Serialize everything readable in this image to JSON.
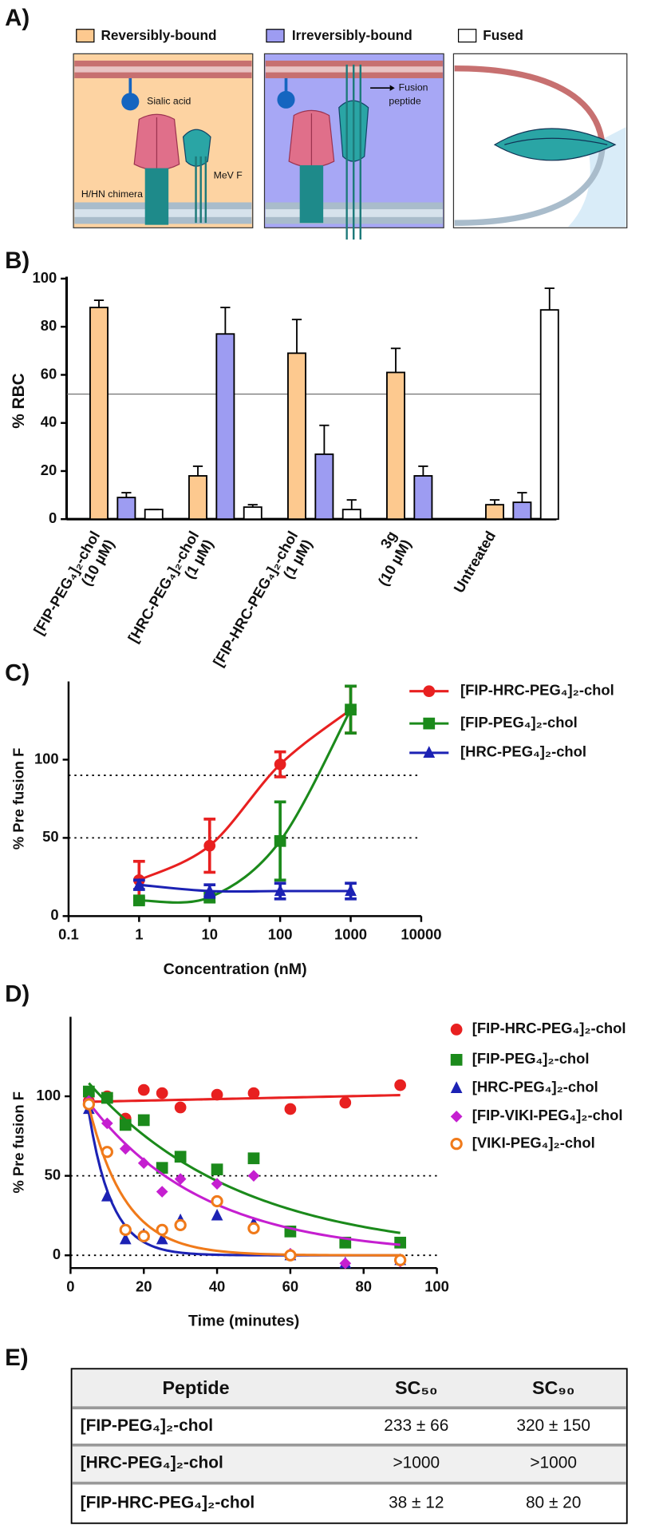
{
  "panel_a": {
    "label": "A)",
    "sialic_acid": "Sialic acid",
    "chimera": "H/HN chimera",
    "mev_f": "MeV F",
    "fusion_peptide": [
      "Fusion",
      "peptide"
    ]
  },
  "chart_data": [
    {
      "type": "bar",
      "panel_label": "B)",
      "ylabel": "% RBC",
      "categories": [
        "[FIP-PEG₄]₂-chol",
        "[HRC-PEG₄]₂-chol",
        "[FIP-HRC-PEG₄]₂-chol",
        "3g",
        "Untreated"
      ],
      "category_sublabels": [
        "(10 µM)",
        "(1 µM)",
        "(1 µM)",
        "(10 µM)",
        null
      ],
      "series": [
        {
          "name": "Reversibly-bound",
          "color": "#fdc98f",
          "values": [
            88,
            18,
            69,
            61,
            6
          ],
          "errors": [
            3,
            4,
            14,
            10,
            2
          ]
        },
        {
          "name": "Irreversibly-bound",
          "color": "#9d9cf2",
          "values": [
            9,
            77,
            27,
            18,
            7
          ],
          "errors": [
            2,
            11,
            12,
            4,
            4
          ]
        },
        {
          "name": "Fused",
          "color": "#ffffff",
          "values": [
            4,
            5,
            4,
            null,
            87
          ],
          "errors": [
            0,
            1,
            4,
            null,
            9
          ]
        }
      ],
      "ylim": [
        0,
        100
      ],
      "yticks": [
        0,
        20,
        40,
        60,
        80,
        100
      ],
      "reference_line": 52
    },
    {
      "type": "line",
      "panel_label": "C)",
      "xlabel": "Concentration (nM)",
      "ylabel": "% Pre fusion F",
      "xscale": "log",
      "x": [
        1,
        10,
        100,
        1000
      ],
      "series": [
        {
          "name": "[FIP-HRC-PEG₄]₂-chol",
          "color": "#e82020",
          "marker": "circle",
          "values": [
            23,
            45,
            97,
            132
          ],
          "errors": [
            12,
            17,
            8,
            15
          ]
        },
        {
          "name": "[FIP-PEG₄]₂-chol",
          "color": "#1b8a1b",
          "marker": "square",
          "values": [
            10,
            12,
            48,
            132
          ],
          "errors": [
            2,
            3,
            25,
            15
          ]
        },
        {
          "name": "[HRC-PEG₄]₂-chol",
          "color": "#1c22b4",
          "marker": "triangle",
          "values": [
            20,
            16,
            16,
            16
          ],
          "errors": [
            3,
            4,
            5,
            5
          ]
        }
      ],
      "xlim": [
        0.1,
        10000
      ],
      "xticks": [
        0.1,
        1,
        10,
        100,
        1000,
        10000
      ],
      "ylim": [
        0,
        150
      ],
      "yticks": [
        0,
        50,
        100
      ],
      "reference_lines": [
        90,
        50
      ]
    },
    {
      "type": "scatter",
      "panel_label": "D)",
      "xlabel": "Time (minutes)",
      "ylabel": "% Pre fusion F",
      "fit_curves": true,
      "x": [
        5,
        10,
        15,
        20,
        25,
        30,
        40,
        50,
        60,
        75,
        90
      ],
      "series": [
        {
          "name": "[FIP-HRC-PEG₄]₂-chol",
          "color": "#e82020",
          "marker": "circle",
          "values": [
            97,
            100,
            86,
            104,
            102,
            93,
            101,
            102,
            92,
            96,
            107
          ]
        },
        {
          "name": "[FIP-PEG₄]₂-chol",
          "color": "#1b8a1b",
          "marker": "square",
          "values": [
            103,
            99,
            82,
            85,
            55,
            62,
            54,
            61,
            15,
            8,
            8
          ]
        },
        {
          "name": "[HRC-PEG₄]₂-chol",
          "color": "#1c22b4",
          "marker": "triangle",
          "values": [
            92,
            37,
            10,
            13,
            10,
            22,
            25,
            20,
            0,
            -5,
            -3
          ]
        },
        {
          "name": "[FIP-VIKI-PEG₄]₂-chol",
          "color": "#c51fd0",
          "marker": "diamond",
          "values": [
            97,
            83,
            67,
            58,
            40,
            48,
            45,
            50,
            1,
            -5,
            -4
          ]
        },
        {
          "name": "[VIKI-PEG₄]₂-chol",
          "color": "#f07a1a",
          "marker": "open-circle",
          "values": [
            95,
            65,
            16,
            12,
            16,
            19,
            34,
            17,
            0,
            null,
            -3
          ]
        }
      ],
      "xlim": [
        0,
        100
      ],
      "xticks": [
        0,
        20,
        40,
        60,
        80,
        100
      ],
      "ylim": [
        -8,
        150
      ],
      "yticks": [
        0,
        50,
        100
      ],
      "reference_lines": [
        50,
        0
      ]
    }
  ],
  "table": {
    "label": "E)",
    "header": [
      "Peptide",
      "SC₅₀",
      "SC₉₀"
    ],
    "rows": [
      [
        "[FIP-PEG₄]₂-chol",
        "233 ± 66",
        "320 ± 150"
      ],
      [
        "[HRC-PEG₄]₂-chol",
        ">1000",
        ">1000"
      ],
      [
        "[FIP-HRC-PEG₄]₂-chol",
        "38 ± 12",
        "80 ± 20"
      ]
    ]
  }
}
